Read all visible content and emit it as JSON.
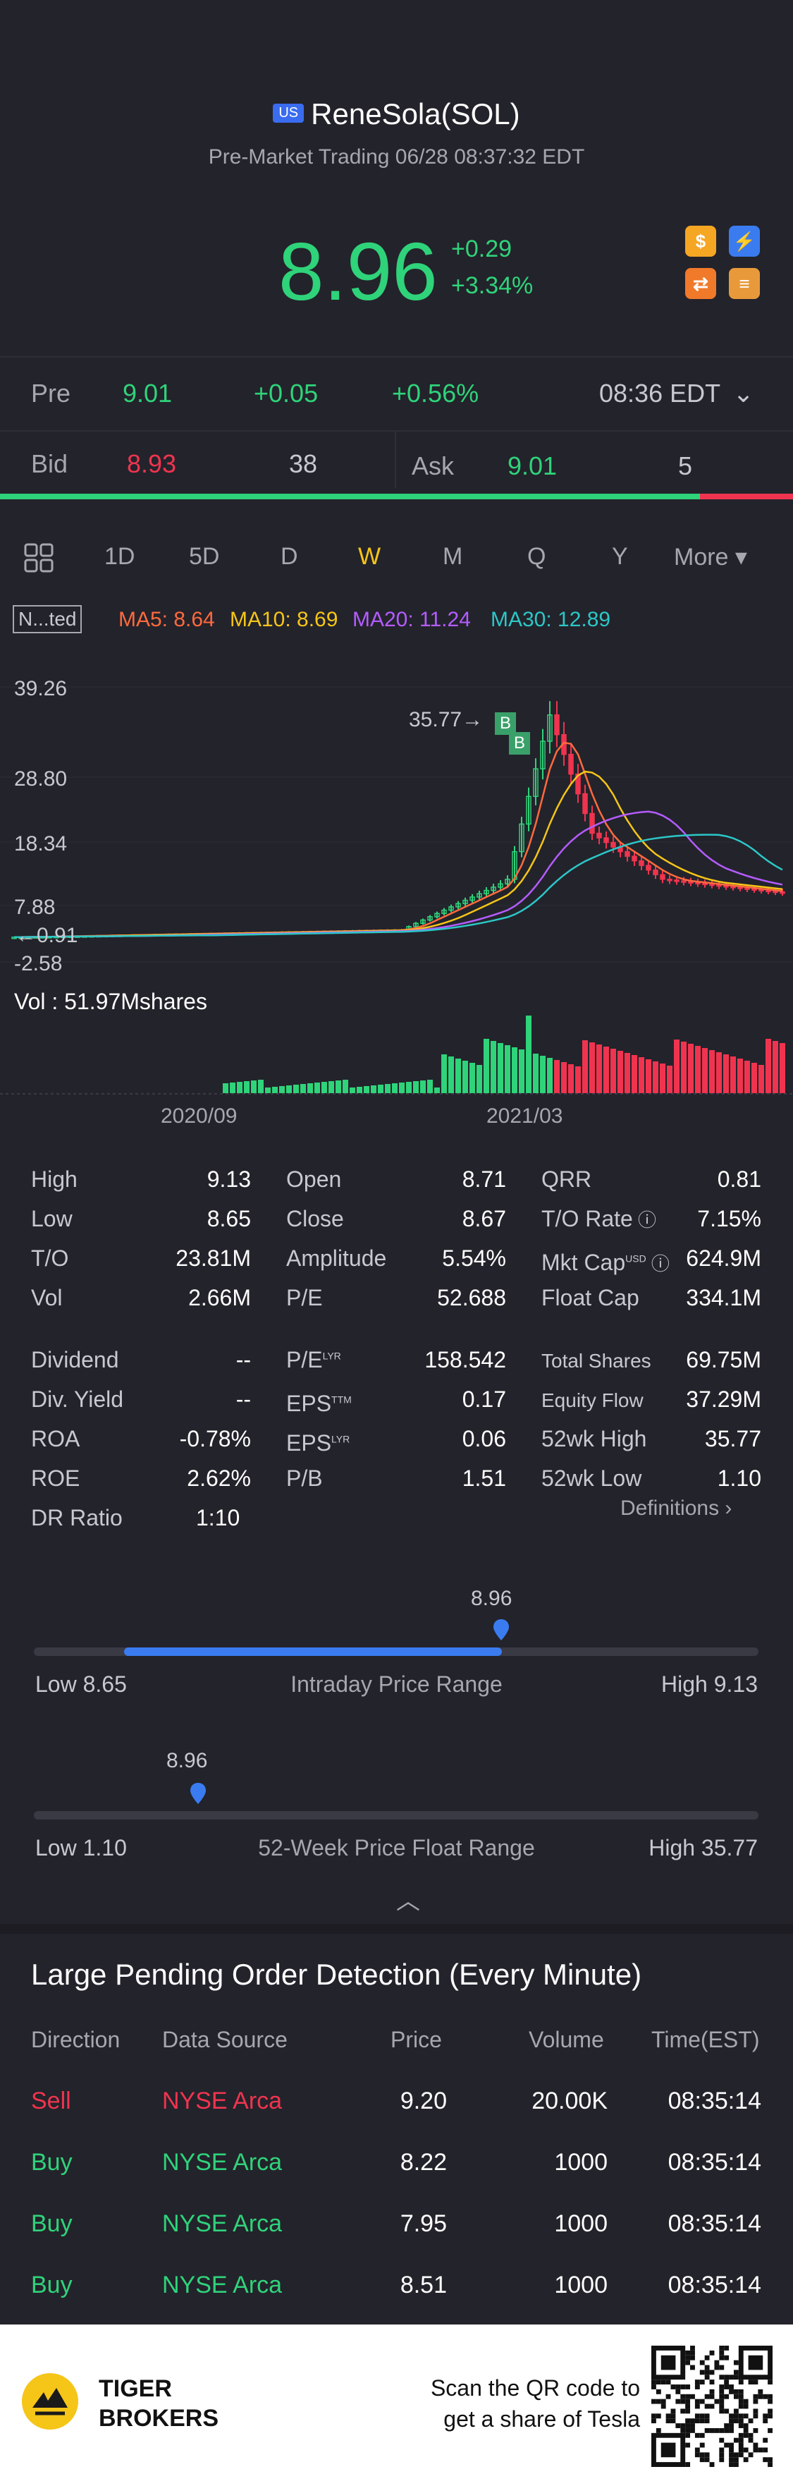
{
  "header": {
    "market_badge": "US",
    "title": "ReneSola(SOL)",
    "subtitle": "Pre-Market Trading 06/28 08:37:32 EDT"
  },
  "quote": {
    "price": "8.96",
    "change": "+0.29",
    "change_pct": "+3.34%"
  },
  "pre": {
    "label": "Pre",
    "price": "9.01",
    "change": "+0.05",
    "change_pct": "+0.56%",
    "time": "08:36 EDT"
  },
  "bidask": {
    "bid_label": "Bid",
    "bid_price": "8.93",
    "bid_size": "38",
    "ask_label": "Ask",
    "ask_price": "9.01",
    "ask_size": "5"
  },
  "tabs": [
    "1D",
    "5D",
    "D",
    "W",
    "M",
    "Q",
    "Y",
    "More ▾"
  ],
  "active_tab": "W",
  "indicator": {
    "toggle": "N...ted",
    "ma5": "MA5: 8.64",
    "ma10": "MA10: 8.69",
    "ma20": "MA20: 11.24",
    "ma30": "MA30: 12.89",
    "colors": {
      "ma5": "#ff6a3d",
      "ma10": "#f5c518",
      "ma20": "#b45cff",
      "ma30": "#2cc7c7"
    }
  },
  "chart_data": {
    "type": "candlestick",
    "y_ticks": [
      "39.26",
      "28.80",
      "18.34",
      "7.88",
      "-2.58"
    ],
    "high_marker": "35.77",
    "low_marker": "0.91",
    "trade_markers": [
      "B",
      "B"
    ],
    "volume_label": "Vol",
    "volume_value": ": 51.97Mshares",
    "x_ticks": [
      "2020/09",
      "2021/03"
    ]
  },
  "stats": {
    "col1": [
      {
        "label": "High",
        "value": "9.13"
      },
      {
        "label": "Low",
        "value": "8.65"
      },
      {
        "label": "T/O",
        "value": "23.81M"
      },
      {
        "label": "Vol",
        "value": "2.66M"
      }
    ],
    "col2": [
      {
        "label": "Open",
        "value": "8.71"
      },
      {
        "label": "Close",
        "value": "8.67"
      },
      {
        "label": "Amplitude",
        "value": "5.54%"
      },
      {
        "label": "P/E",
        "value": "52.688"
      }
    ],
    "col3": [
      {
        "label": "QRR",
        "value": "0.81"
      },
      {
        "label": "T/O Rate",
        "value": "7.15%"
      },
      {
        "label": "Mkt Cap",
        "sup": "USD",
        "value": "624.9M"
      },
      {
        "label": "Float Cap",
        "value": "334.1M"
      }
    ],
    "col1b": [
      {
        "label": "Dividend",
        "value": "--"
      },
      {
        "label": "Div. Yield",
        "value": "--"
      },
      {
        "label": "ROA",
        "value": "-0.78%"
      },
      {
        "label": "ROE",
        "value": "2.62%"
      },
      {
        "label": "DR Ratio",
        "value": "1:10"
      }
    ],
    "col2b": [
      {
        "label": "P/E",
        "sup": "LYR",
        "value": "158.542"
      },
      {
        "label": "EPS",
        "sup": "TTM",
        "value": "0.17"
      },
      {
        "label": "EPS",
        "sup": "LYR",
        "value": "0.06"
      },
      {
        "label": "P/B",
        "value": "1.51"
      }
    ],
    "col3b": [
      {
        "label": "Total Shares",
        "value": "69.75M"
      },
      {
        "label": "Equity Flow",
        "value": "37.29M"
      },
      {
        "label": "52wk High",
        "value": "35.77"
      },
      {
        "label": "52wk Low",
        "value": "1.10"
      }
    ],
    "definitions": "Definitions"
  },
  "intraday_range": {
    "current": "8.96",
    "low": "Low 8.65",
    "title": "Intraday Price Range",
    "high": "High 9.13",
    "low_value": 8.65,
    "high_value": 9.13,
    "current_value": 8.96
  },
  "week52_range": {
    "current": "8.96",
    "low": "Low 1.10",
    "title": "52-Week Price Float Range",
    "high": "High 35.77",
    "low_value": 1.1,
    "high_value": 35.77,
    "current_value": 8.96
  },
  "orders": {
    "title": "Large Pending Order Detection (Every Minute)",
    "headers": [
      "Direction",
      "Data Source",
      "Price",
      "Volume",
      "Time(EST)"
    ],
    "rows": [
      {
        "direction": "Sell",
        "source": "NYSE Arca",
        "price": "9.20",
        "volume": "20.00K",
        "time": "08:35:14"
      },
      {
        "direction": "Buy",
        "source": "NYSE Arca",
        "price": "8.22",
        "volume": "1000",
        "time": "08:35:14"
      },
      {
        "direction": "Buy",
        "source": "NYSE Arca",
        "price": "7.95",
        "volume": "1000",
        "time": "08:35:14"
      },
      {
        "direction": "Buy",
        "source": "NYSE Arca",
        "price": "8.51",
        "volume": "1000",
        "time": "08:35:14"
      }
    ]
  },
  "footer": {
    "brand_line1": "TIGER",
    "brand_line2": "BROKERS",
    "promo_line1": "Scan the QR code to",
    "promo_line2": "get a share of Tesla"
  }
}
